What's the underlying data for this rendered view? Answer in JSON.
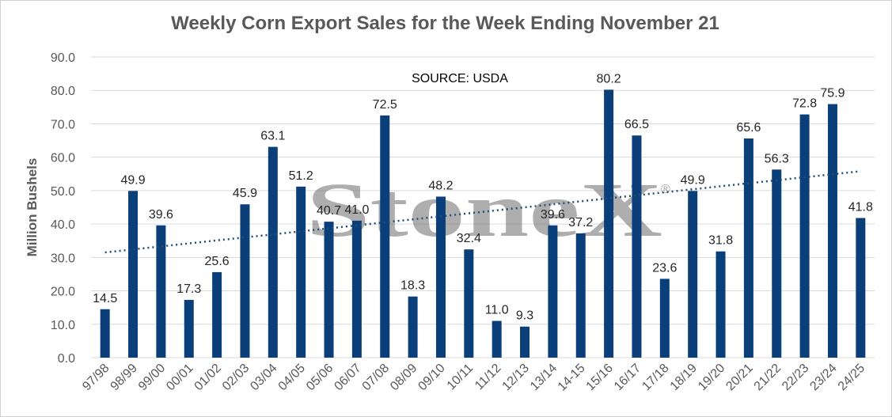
{
  "chart_data": {
    "type": "bar",
    "title": "Weekly Corn Export Sales for the Week Ending November 21",
    "ylabel": "Million Bushels",
    "xlabel": "",
    "ylim": [
      0,
      90
    ],
    "yticks": [
      "0.0",
      "10.0",
      "20.0",
      "30.0",
      "40.0",
      "50.0",
      "60.0",
      "70.0",
      "80.0",
      "90.0"
    ],
    "categories": [
      "97/98",
      "98/99",
      "99/00",
      "00/01",
      "01/02",
      "02/03",
      "03/04",
      "04/05",
      "05/06",
      "06/07",
      "07/08",
      "08/09",
      "09/10",
      "10/11",
      "11/12",
      "12/13",
      "13/14",
      "14-15",
      "15/16",
      "16/17",
      "17/18",
      "18/19",
      "19/20",
      "20/21",
      "21/22",
      "22/23",
      "23/24",
      "24/25"
    ],
    "values": [
      14.5,
      49.9,
      39.6,
      17.3,
      25.6,
      45.9,
      63.1,
      51.2,
      40.7,
      41.0,
      72.5,
      18.3,
      48.2,
      32.4,
      11.0,
      9.3,
      39.6,
      37.2,
      80.2,
      66.5,
      23.6,
      49.9,
      31.8,
      65.6,
      56.3,
      72.8,
      75.9,
      41.8
    ],
    "value_labels": [
      "14.5",
      "49.9",
      "39.6",
      "17.3",
      "25.6",
      "45.9",
      "63.1",
      "51.2",
      "40.7",
      "41.0",
      "72.5",
      "18.3",
      "48.2",
      "32.4",
      "11.0",
      "9.3",
      "39.6",
      "37.2",
      "80.2",
      "66.5",
      "23.6",
      "49.9",
      "31.8",
      "65.6",
      "56.3",
      "72.8",
      "75.9",
      "41.8"
    ],
    "trendline": {
      "style": "dotted",
      "start": 31.5,
      "end": 55.8
    },
    "grid": true,
    "bar_color": "#0a3f7a",
    "grid_color": "#d9d9d9",
    "annotation": "SOURCE: USDA",
    "watermark": "StoneX",
    "watermark_mark": "®"
  }
}
